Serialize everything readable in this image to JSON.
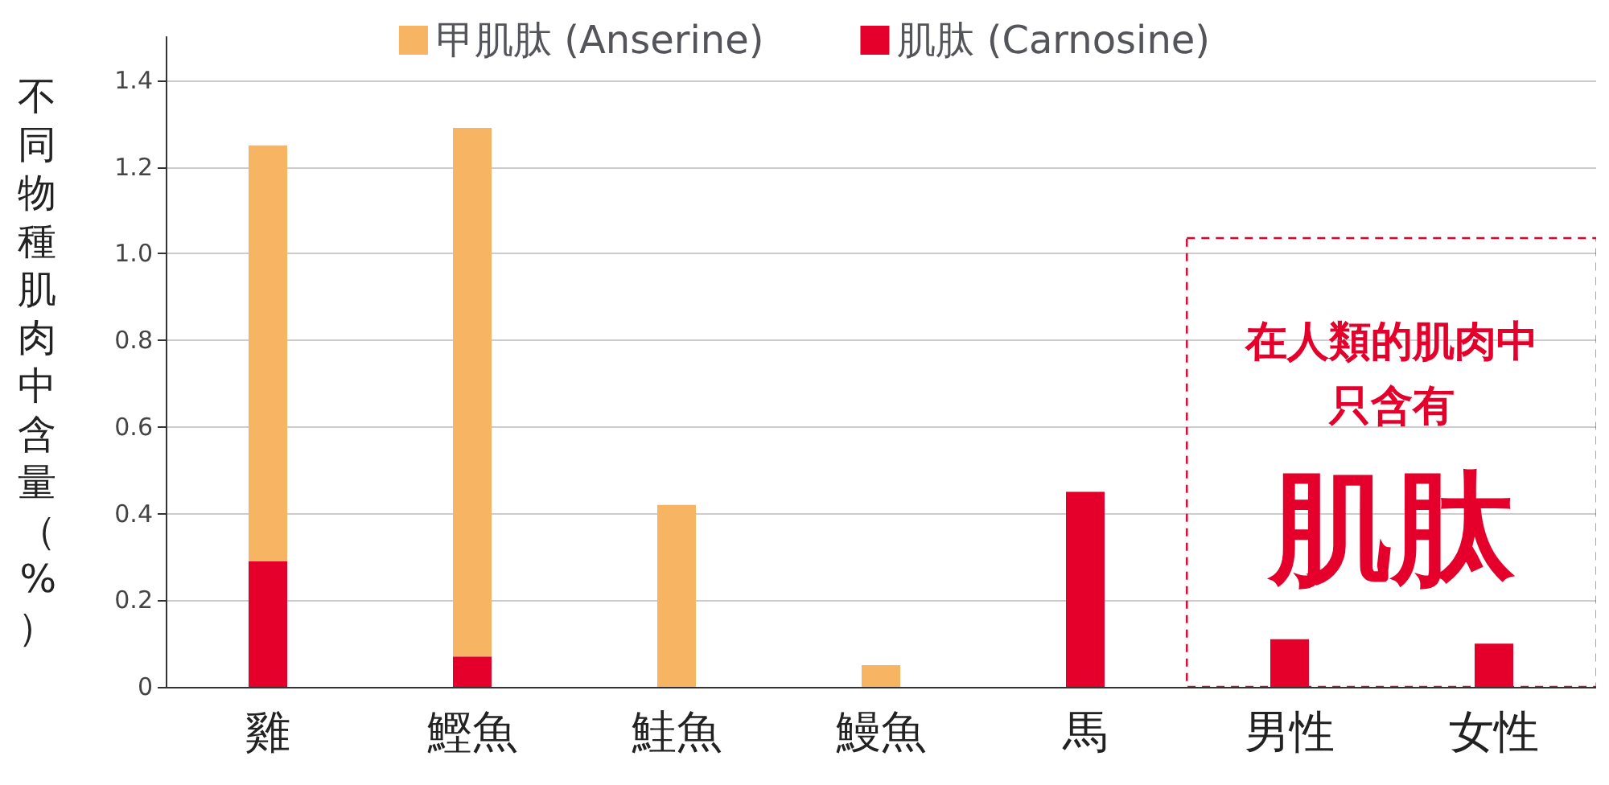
{
  "chart_data": {
    "type": "bar",
    "stacked": true,
    "ylabel": "不同物種肌肉中含量（%）",
    "categories": [
      "雞",
      "鰹魚",
      "鮭魚",
      "鰻魚",
      "馬",
      "男性",
      "女性"
    ],
    "series": [
      {
        "name": "肌肽 (Carnosine)",
        "color": "#e4002b",
        "values": [
          0.29,
          0.07,
          0,
          0,
          0.45,
          0.11,
          0.1
        ]
      },
      {
        "name": "甲肌肽 (Anserine)",
        "color": "#f7b563",
        "values": [
          0.96,
          1.22,
          0.42,
          0.05,
          0,
          0,
          0
        ]
      }
    ],
    "ylim": [
      0,
      1.5
    ],
    "yticks": [
      0,
      0.2,
      0.4,
      0.6,
      0.8,
      {
        "value": 1,
        "label": "1.0"
      },
      1.2,
      1.4
    ],
    "grid": "y",
    "legend": "top",
    "annotations": [
      "在人類的肌肉中",
      "只含有",
      "肌肽"
    ]
  }
}
